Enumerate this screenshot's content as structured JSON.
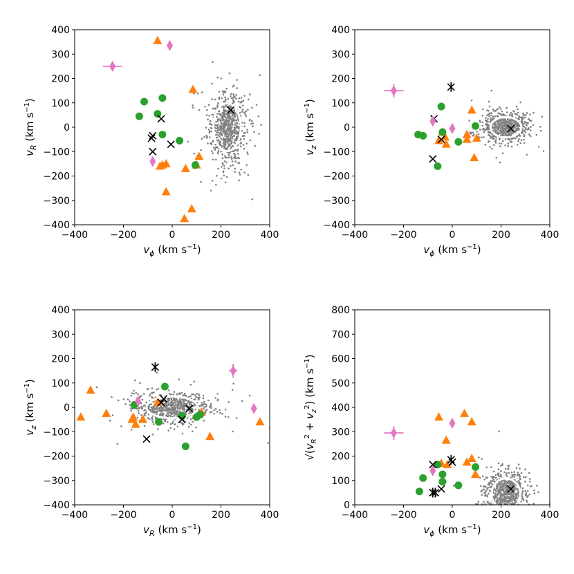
{
  "colors": {
    "disk": "#808080",
    "triangle": "#ff7f0e",
    "circle": "#2ca02c",
    "cross": "#000000",
    "diamond": "#e377c2"
  },
  "axis_labels": {
    "vphi": "vϕ (km s⁻¹)",
    "vR": "vR (km s⁻¹)",
    "vz": "vz (km s⁻¹)",
    "vRz": "√(vR² + vz²) (km s⁻¹)"
  },
  "chart_data": [
    {
      "type": "scatter",
      "title": "",
      "xlabel": "vϕ (km s⁻¹)",
      "ylabel": "vR (km s⁻¹)",
      "xlim": [
        -400,
        400
      ],
      "ylim": [
        -400,
        400
      ],
      "xticks": [
        -400,
        -200,
        0,
        200,
        400
      ],
      "yticks": [
        -400,
        -300,
        -200,
        -100,
        0,
        100,
        200,
        300,
        400
      ],
      "disk": {
        "cx": 225,
        "cy": 0,
        "sx": 40,
        "sy": 70,
        "count": 700,
        "contour_levels": [
          0.5,
          0.9,
          1.4
        ]
      },
      "series": [
        {
          "name": "triangle",
          "marker": "triangle",
          "points": [
            [
              -60,
              355
            ],
            [
              85,
              155
            ],
            [
              110,
              -120
            ],
            [
              -40,
              -155
            ],
            [
              -50,
              -160
            ],
            [
              -25,
              -150
            ],
            [
              55,
              -170
            ],
            [
              100,
              -155
            ],
            [
              -25,
              -265
            ],
            [
              80,
              -335
            ],
            [
              50,
              -375
            ]
          ]
        },
        {
          "name": "circle",
          "marker": "circle",
          "points": [
            [
              -115,
              105
            ],
            [
              -40,
              120
            ],
            [
              -60,
              55
            ],
            [
              -135,
              45
            ],
            [
              -40,
              -30
            ],
            [
              30,
              -55
            ],
            [
              95,
              -155
            ]
          ]
        },
        {
          "name": "cross",
          "marker": "cross",
          "points": [
            [
              -45,
              35
            ],
            [
              -80,
              -35
            ],
            [
              -85,
              -45
            ],
            [
              -80,
              -100
            ],
            [
              -5,
              -70
            ],
            [
              240,
              70
            ]
          ]
        },
        {
          "name": "diamond",
          "marker": "diamond",
          "points": [
            [
              -10,
              335
            ],
            [
              -80,
              -140
            ]
          ]
        },
        {
          "name": "diamond-error",
          "marker": "diamond-error",
          "points": [
            [
              -245,
              250
            ]
          ],
          "xerr": 40,
          "yerr": 18
        }
      ]
    },
    {
      "type": "scatter",
      "title": "",
      "xlabel": "vϕ (km s⁻¹)",
      "ylabel": "vz (km s⁻¹)",
      "xlim": [
        -400,
        400
      ],
      "ylim": [
        -400,
        400
      ],
      "xticks": [
        -400,
        -200,
        0,
        200,
        400
      ],
      "yticks": [
        -400,
        -300,
        -200,
        -100,
        0,
        100,
        200,
        300,
        400
      ],
      "disk": {
        "cx": 220,
        "cy": 0,
        "sx": 45,
        "sy": 30,
        "count": 700,
        "contour_levels": [
          0.5,
          0.9,
          1.4
        ]
      },
      "series": [
        {
          "name": "triangle",
          "marker": "triangle",
          "points": [
            [
              80,
              70
            ],
            [
              -55,
              -55
            ],
            [
              -25,
              -70
            ],
            [
              60,
              -30
            ],
            [
              60,
              -50
            ],
            [
              100,
              -45
            ],
            [
              -40,
              -20
            ],
            [
              -30,
              -40
            ],
            [
              90,
              -125
            ]
          ]
        },
        {
          "name": "circle",
          "marker": "circle",
          "points": [
            [
              -45,
              85
            ],
            [
              -140,
              -30
            ],
            [
              -120,
              -35
            ],
            [
              -40,
              -20
            ],
            [
              25,
              -60
            ],
            [
              95,
              5
            ],
            [
              -60,
              -160
            ]
          ]
        },
        {
          "name": "cross",
          "marker": "cross",
          "points": [
            [
              -75,
              35
            ],
            [
              -45,
              -50
            ],
            [
              -80,
              -130
            ],
            [
              240,
              -5
            ]
          ]
        },
        {
          "name": "cross-star",
          "marker": "cross-star",
          "points": [
            [
              -5,
              165
            ]
          ]
        },
        {
          "name": "diamond",
          "marker": "diamond",
          "points": [
            [
              -80,
              25
            ],
            [
              0,
              -5
            ]
          ]
        },
        {
          "name": "diamond-error",
          "marker": "diamond-error",
          "points": [
            [
              -240,
              150
            ]
          ],
          "xerr": 40,
          "yerr": 28
        }
      ]
    },
    {
      "type": "scatter",
      "title": "",
      "xlabel": "vR (km s⁻¹)",
      "ylabel": "vz (km s⁻¹)",
      "xlim": [
        -400,
        400
      ],
      "ylim": [
        -400,
        400
      ],
      "xticks": [
        -400,
        -200,
        0,
        200,
        400
      ],
      "yticks": [
        -400,
        -300,
        -200,
        -100,
        0,
        100,
        200,
        300,
        400
      ],
      "disk": {
        "cx": 0,
        "cy": 0,
        "sx": 75,
        "sy": 32,
        "count": 700,
        "contour_levels": [
          0.5,
          0.9,
          1.4
        ]
      },
      "series": [
        {
          "name": "triangle",
          "marker": "triangle",
          "points": [
            [
              -335,
              70
            ],
            [
              -375,
              -40
            ],
            [
              -270,
              -25
            ],
            [
              -160,
              -40
            ],
            [
              -165,
              -50
            ],
            [
              -150,
              -70
            ],
            [
              -120,
              -50
            ],
            [
              -60,
              20
            ],
            [
              120,
              -20
            ],
            [
              155,
              -120
            ],
            [
              360,
              -60
            ]
          ]
        },
        {
          "name": "circle",
          "marker": "circle",
          "points": [
            [
              -155,
              10
            ],
            [
              -30,
              85
            ],
            [
              -55,
              -60
            ],
            [
              40,
              -35
            ],
            [
              100,
              -40
            ],
            [
              115,
              -30
            ],
            [
              55,
              -160
            ]
          ]
        },
        {
          "name": "cross",
          "marker": "cross",
          "points": [
            [
              -45,
              20
            ],
            [
              -35,
              35
            ],
            [
              -105,
              -130
            ],
            [
              70,
              -5
            ],
            [
              40,
              -50
            ]
          ]
        },
        {
          "name": "cross-star",
          "marker": "cross-star",
          "points": [
            [
              -70,
              165
            ]
          ]
        },
        {
          "name": "diamond",
          "marker": "diamond",
          "points": [
            [
              -140,
              25
            ],
            [
              335,
              -5
            ]
          ]
        },
        {
          "name": "diamond-error",
          "marker": "diamond-error",
          "points": [
            [
              250,
              150
            ]
          ],
          "xerr": 18,
          "yerr": 28
        }
      ]
    },
    {
      "type": "scatter",
      "title": "",
      "xlabel": "vϕ (km s⁻¹)",
      "ylabel": "√(vR² + vz²) (km s⁻¹)",
      "xlim": [
        -400,
        400
      ],
      "ylim": [
        0,
        800
      ],
      "xticks": [
        -400,
        -200,
        0,
        200,
        400
      ],
      "yticks": [
        0,
        100,
        200,
        300,
        400,
        500,
        600,
        700,
        800
      ],
      "disk": {
        "cx": 220,
        "cy": 45,
        "sx": 42,
        "sy": 45,
        "count": 700,
        "contour_levels": [
          0.5,
          0.9,
          1.4
        ]
      },
      "series": [
        {
          "name": "triangle",
          "marker": "triangle",
          "points": [
            [
              -55,
              360
            ],
            [
              50,
              375
            ],
            [
              80,
              340
            ],
            [
              -25,
              265
            ],
            [
              -45,
              170
            ],
            [
              -20,
              165
            ],
            [
              60,
              175
            ],
            [
              80,
              190
            ],
            [
              95,
              125
            ]
          ]
        },
        {
          "name": "circle",
          "marker": "circle",
          "points": [
            [
              -135,
              55
            ],
            [
              -120,
              110
            ],
            [
              -60,
              165
            ],
            [
              -40,
              125
            ],
            [
              -40,
              95
            ],
            [
              25,
              80
            ],
            [
              95,
              155
            ]
          ]
        },
        {
          "name": "cross",
          "marker": "cross",
          "points": [
            [
              -80,
              165
            ],
            [
              -45,
              65
            ],
            [
              0,
              175
            ],
            [
              240,
              65
            ]
          ]
        },
        {
          "name": "cross-star",
          "marker": "cross-star",
          "points": [
            [
              -80,
              50
            ],
            [
              -70,
              50
            ],
            [
              -5,
              185
            ]
          ]
        },
        {
          "name": "diamond",
          "marker": "diamond",
          "points": [
            [
              -80,
              140
            ],
            [
              0,
              335
            ]
          ]
        },
        {
          "name": "diamond-error",
          "marker": "diamond-error",
          "points": [
            [
              -240,
              295
            ]
          ],
          "xerr": 40,
          "yerr": 28
        }
      ]
    }
  ]
}
